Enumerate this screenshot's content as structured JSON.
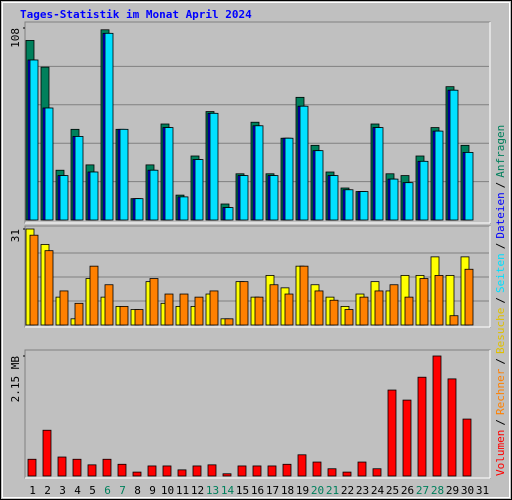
{
  "legend_separator": "/",
  "chart_data": [
    {
      "type": "bar",
      "title": "Tages-Statistik im Monat April 2024",
      "ylim": [
        0,
        108
      ],
      "yticks": [
        108
      ],
      "series": [
        {
          "name": "Anfragen",
          "color": "#00805c",
          "values": [
            101,
            86,
            28,
            51,
            31,
            107,
            51,
            12,
            31,
            54,
            14,
            36,
            61,
            9,
            26,
            55,
            26,
            46,
            69,
            42,
            27,
            18,
            16,
            54,
            26,
            25,
            36,
            52,
            75,
            42,
            null
          ]
        },
        {
          "name": "Dateien",
          "color": "#0000ff",
          "values": [
            90,
            63,
            25,
            47,
            27,
            105,
            51,
            12,
            28,
            52,
            13,
            34,
            60,
            7,
            25,
            53,
            25,
            46,
            64,
            39,
            25,
            17,
            16,
            52,
            23,
            21,
            33,
            50,
            73,
            38,
            null
          ]
        },
        {
          "name": "Seiten",
          "color": "#00e0ff",
          "values": [
            90,
            63,
            25,
            47,
            27,
            105,
            51,
            12,
            28,
            52,
            13,
            34,
            60,
            7,
            25,
            53,
            25,
            46,
            64,
            39,
            25,
            17,
            16,
            52,
            23,
            21,
            33,
            50,
            73,
            38,
            null
          ]
        }
      ]
    },
    {
      "type": "bar",
      "ylim": [
        0,
        31
      ],
      "yticks": [
        31
      ],
      "series": [
        {
          "name": "Besuche",
          "color": "#ffff00",
          "values": [
            31,
            26,
            9,
            2,
            15,
            9,
            6,
            5,
            14,
            7,
            6,
            6,
            10,
            2,
            14,
            9,
            16,
            12,
            19,
            13,
            9,
            6,
            10,
            14,
            11,
            16,
            16,
            22,
            16,
            22,
            null
          ]
        },
        {
          "name": "Rechner",
          "color": "#ff8000",
          "values": [
            29,
            24,
            11,
            7,
            19,
            13,
            6,
            5,
            15,
            10,
            10,
            9,
            11,
            2,
            14,
            9,
            13,
            10,
            19,
            11,
            8,
            5,
            9,
            11,
            13,
            9,
            15,
            16,
            3,
            18,
            null
          ]
        }
      ]
    },
    {
      "type": "bar",
      "ylim": [
        0,
        2.15
      ],
      "yticks": [
        {
          "value": 2.15,
          "label": "2.15 MB"
        }
      ],
      "categories": [
        "1",
        "2",
        "3",
        "4",
        "5",
        "6",
        "7",
        "8",
        "9",
        "10",
        "11",
        "12",
        "13",
        "14",
        "15",
        "16",
        "17",
        "18",
        "19",
        "20",
        "21",
        "22",
        "23",
        "24",
        "25",
        "26",
        "27",
        "28",
        "29",
        "30",
        "31"
      ],
      "category_colors": [
        "#000000",
        "#000000",
        "#000000",
        "#000000",
        "#000000",
        "#00805c",
        "#00805c",
        "#000000",
        "#000000",
        "#000000",
        "#000000",
        "#000000",
        "#00805c",
        "#00805c",
        "#000000",
        "#000000",
        "#000000",
        "#000000",
        "#000000",
        "#00805c",
        "#00805c",
        "#000000",
        "#000000",
        "#000000",
        "#000000",
        "#000000",
        "#00805c",
        "#00805c",
        "#000000",
        "#000000",
        "#000000"
      ],
      "series": [
        {
          "name": "Volumen",
          "color": "#ff0000",
          "values": [
            0.3,
            0.82,
            0.34,
            0.3,
            0.2,
            0.3,
            0.21,
            0.07,
            0.18,
            0.18,
            0.11,
            0.18,
            0.2,
            0.04,
            0.18,
            0.18,
            0.18,
            0.21,
            0.38,
            0.25,
            0.13,
            0.07,
            0.25,
            0.13,
            1.54,
            1.36,
            1.77,
            2.15,
            1.74,
            1.02,
            null
          ]
        }
      ]
    }
  ]
}
